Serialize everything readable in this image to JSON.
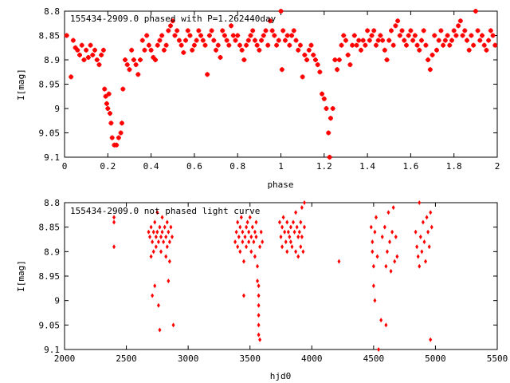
{
  "chart_data": [
    {
      "type": "scatter",
      "title": "155434-2909.0 phased with P=1.262440day",
      "xlabel": "phase",
      "ylabel": "I[mag]",
      "xlim": [
        0,
        2
      ],
      "ylim": [
        8.8,
        9.1
      ],
      "y_inverted": true,
      "xticks": [
        "0",
        "0.2",
        "0.4",
        "0.6",
        "0.8",
        "1",
        "1.2",
        "1.4",
        "1.6",
        "1.8",
        "2"
      ],
      "yticks": [
        "8.8",
        "8.85",
        "8.9",
        "8.95",
        "9",
        "9.05",
        "9.1"
      ],
      "marker_color": "#ff0000",
      "grid": false,
      "points": [
        [
          0.01,
          8.85
        ],
        [
          0.03,
          8.935
        ],
        [
          0.04,
          8.86
        ],
        [
          0.05,
          8.875
        ],
        [
          0.06,
          8.88
        ],
        [
          0.07,
          8.89
        ],
        [
          0.08,
          8.87
        ],
        [
          0.09,
          8.9
        ],
        [
          0.1,
          8.88
        ],
        [
          0.11,
          8.895
        ],
        [
          0.12,
          8.87
        ],
        [
          0.13,
          8.89
        ],
        [
          0.14,
          8.88
        ],
        [
          0.15,
          8.9
        ],
        [
          0.16,
          8.91
        ],
        [
          0.17,
          8.89
        ],
        [
          0.18,
          8.88
        ],
        [
          0.185,
          8.96
        ],
        [
          0.19,
          8.975
        ],
        [
          0.195,
          8.99
        ],
        [
          0.2,
          9.0
        ],
        [
          0.205,
          8.97
        ],
        [
          0.21,
          9.01
        ],
        [
          0.215,
          9.03
        ],
        [
          0.22,
          9.06
        ],
        [
          0.23,
          9.075
        ],
        [
          0.24,
          9.075
        ],
        [
          0.25,
          9.06
        ],
        [
          0.26,
          9.05
        ],
        [
          0.265,
          9.03
        ],
        [
          0.27,
          8.96
        ],
        [
          0.28,
          8.9
        ],
        [
          0.29,
          8.91
        ],
        [
          0.3,
          8.92
        ],
        [
          0.31,
          8.88
        ],
        [
          0.32,
          8.9
        ],
        [
          0.33,
          8.91
        ],
        [
          0.34,
          8.93
        ],
        [
          0.35,
          8.9
        ],
        [
          0.36,
          8.86
        ],
        [
          0.37,
          8.88
        ],
        [
          0.38,
          8.85
        ],
        [
          0.39,
          8.87
        ],
        [
          0.4,
          8.88
        ],
        [
          0.41,
          8.895
        ],
        [
          0.42,
          8.9
        ],
        [
          0.43,
          8.87
        ],
        [
          0.44,
          8.86
        ],
        [
          0.45,
          8.85
        ],
        [
          0.46,
          8.88
        ],
        [
          0.47,
          8.87
        ],
        [
          0.48,
          8.84
        ],
        [
          0.49,
          8.83
        ],
        [
          0.5,
          8.82
        ],
        [
          0.51,
          8.85
        ],
        [
          0.52,
          8.84
        ],
        [
          0.53,
          8.86
        ],
        [
          0.54,
          8.87
        ],
        [
          0.55,
          8.885
        ],
        [
          0.56,
          8.86
        ],
        [
          0.57,
          8.84
        ],
        [
          0.58,
          8.85
        ],
        [
          0.59,
          8.88
        ],
        [
          0.6,
          8.87
        ],
        [
          0.61,
          8.86
        ],
        [
          0.62,
          8.84
        ],
        [
          0.63,
          8.85
        ],
        [
          0.64,
          8.86
        ],
        [
          0.65,
          8.87
        ],
        [
          0.66,
          8.93
        ],
        [
          0.67,
          8.85
        ],
        [
          0.68,
          8.84
        ],
        [
          0.69,
          8.86
        ],
        [
          0.7,
          8.88
        ],
        [
          0.71,
          8.87
        ],
        [
          0.72,
          8.895
        ],
        [
          0.73,
          8.84
        ],
        [
          0.74,
          8.85
        ],
        [
          0.75,
          8.86
        ],
        [
          0.76,
          8.87
        ],
        [
          0.77,
          8.83
        ],
        [
          0.78,
          8.85
        ],
        [
          0.79,
          8.86
        ],
        [
          0.8,
          8.85
        ],
        [
          0.81,
          8.87
        ],
        [
          0.82,
          8.88
        ],
        [
          0.83,
          8.9
        ],
        [
          0.84,
          8.87
        ],
        [
          0.85,
          8.86
        ],
        [
          0.86,
          8.85
        ],
        [
          0.87,
          8.84
        ],
        [
          0.88,
          8.86
        ],
        [
          0.89,
          8.87
        ],
        [
          0.9,
          8.88
        ],
        [
          0.91,
          8.86
        ],
        [
          0.92,
          8.85
        ],
        [
          0.93,
          8.84
        ],
        [
          0.94,
          8.87
        ],
        [
          0.95,
          8.82
        ],
        [
          0.96,
          8.84
        ],
        [
          0.97,
          8.85
        ],
        [
          0.98,
          8.87
        ],
        [
          0.99,
          8.86
        ],
        [
          1.0,
          8.8
        ],
        [
          1.005,
          8.92
        ],
        [
          1.01,
          8.84
        ],
        [
          1.02,
          8.86
        ],
        [
          1.03,
          8.85
        ],
        [
          1.04,
          8.87
        ],
        [
          1.05,
          8.85
        ],
        [
          1.06,
          8.84
        ],
        [
          1.07,
          8.86
        ],
        [
          1.08,
          8.88
        ],
        [
          1.09,
          8.87
        ],
        [
          1.1,
          8.935
        ],
        [
          1.11,
          8.89
        ],
        [
          1.12,
          8.9
        ],
        [
          1.13,
          8.88
        ],
        [
          1.14,
          8.87
        ],
        [
          1.15,
          8.89
        ],
        [
          1.16,
          8.9
        ],
        [
          1.17,
          8.91
        ],
        [
          1.18,
          8.925
        ],
        [
          1.19,
          8.97
        ],
        [
          1.2,
          8.98
        ],
        [
          1.21,
          9.0
        ],
        [
          1.22,
          9.05
        ],
        [
          1.225,
          9.1
        ],
        [
          1.23,
          9.02
        ],
        [
          1.24,
          9.0
        ],
        [
          1.25,
          8.9
        ],
        [
          1.26,
          8.92
        ],
        [
          1.27,
          8.9
        ],
        [
          1.28,
          8.87
        ],
        [
          1.29,
          8.85
        ],
        [
          1.3,
          8.86
        ],
        [
          1.31,
          8.89
        ],
        [
          1.32,
          8.91
        ],
        [
          1.33,
          8.87
        ],
        [
          1.34,
          8.85
        ],
        [
          1.35,
          8.87
        ],
        [
          1.36,
          8.86
        ],
        [
          1.37,
          8.88
        ],
        [
          1.38,
          8.86
        ],
        [
          1.39,
          8.87
        ],
        [
          1.4,
          8.84
        ],
        [
          1.41,
          8.86
        ],
        [
          1.42,
          8.85
        ],
        [
          1.43,
          8.84
        ],
        [
          1.44,
          8.87
        ],
        [
          1.45,
          8.86
        ],
        [
          1.46,
          8.85
        ],
        [
          1.47,
          8.86
        ],
        [
          1.48,
          8.88
        ],
        [
          1.49,
          8.9
        ],
        [
          1.5,
          8.86
        ],
        [
          1.51,
          8.84
        ],
        [
          1.52,
          8.87
        ],
        [
          1.53,
          8.83
        ],
        [
          1.54,
          8.82
        ],
        [
          1.55,
          8.85
        ],
        [
          1.56,
          8.84
        ],
        [
          1.57,
          8.86
        ],
        [
          1.58,
          8.87
        ],
        [
          1.59,
          8.85
        ],
        [
          1.6,
          8.84
        ],
        [
          1.61,
          8.86
        ],
        [
          1.62,
          8.85
        ],
        [
          1.63,
          8.87
        ],
        [
          1.64,
          8.88
        ],
        [
          1.65,
          8.86
        ],
        [
          1.66,
          8.84
        ],
        [
          1.67,
          8.87
        ],
        [
          1.68,
          8.9
        ],
        [
          1.69,
          8.92
        ],
        [
          1.7,
          8.89
        ],
        [
          1.71,
          8.85
        ],
        [
          1.72,
          8.88
        ],
        [
          1.73,
          8.86
        ],
        [
          1.74,
          8.84
        ],
        [
          1.75,
          8.87
        ],
        [
          1.76,
          8.86
        ],
        [
          1.77,
          8.85
        ],
        [
          1.78,
          8.87
        ],
        [
          1.79,
          8.86
        ],
        [
          1.8,
          8.84
        ],
        [
          1.81,
          8.85
        ],
        [
          1.82,
          8.83
        ],
        [
          1.83,
          8.82
        ],
        [
          1.84,
          8.85
        ],
        [
          1.85,
          8.84
        ],
        [
          1.86,
          8.86
        ],
        [
          1.87,
          8.88
        ],
        [
          1.88,
          8.85
        ],
        [
          1.89,
          8.87
        ],
        [
          1.9,
          8.8
        ],
        [
          1.91,
          8.84
        ],
        [
          1.92,
          8.86
        ],
        [
          1.93,
          8.85
        ],
        [
          1.94,
          8.87
        ],
        [
          1.95,
          8.88
        ],
        [
          1.96,
          8.86
        ],
        [
          1.97,
          8.84
        ],
        [
          1.98,
          8.85
        ],
        [
          1.99,
          8.87
        ]
      ]
    },
    {
      "type": "scatter",
      "title": "155434-2909.0 not phased light curve",
      "xlabel": "hjd0",
      "ylabel": "I[mag]",
      "xlim": [
        2000,
        5500
      ],
      "ylim": [
        8.8,
        9.1
      ],
      "y_inverted": true,
      "xticks": [
        "2000",
        "2500",
        "3000",
        "3500",
        "4000",
        "4500",
        "5000",
        "5500"
      ],
      "yticks": [
        "8.8",
        "8.85",
        "8.9",
        "8.95",
        "9",
        "9.05",
        "9.1"
      ],
      "marker_color": "#ff0000",
      "grid": false,
      "points": [
        [
          2400,
          8.83
        ],
        [
          2400,
          8.84
        ],
        [
          2400,
          8.89
        ],
        [
          2680,
          8.86
        ],
        [
          2690,
          8.87
        ],
        [
          2700,
          8.85
        ],
        [
          2700,
          8.91
        ],
        [
          2710,
          8.88
        ],
        [
          2710,
          8.99
        ],
        [
          2720,
          8.86
        ],
        [
          2720,
          8.9
        ],
        [
          2730,
          8.84
        ],
        [
          2730,
          8.97
        ],
        [
          2740,
          8.87
        ],
        [
          2740,
          8.89
        ],
        [
          2750,
          8.82
        ],
        [
          2750,
          8.86
        ],
        [
          2760,
          8.88
        ],
        [
          2760,
          9.01
        ],
        [
          2770,
          8.85
        ],
        [
          2770,
          9.06
        ],
        [
          2780,
          8.87
        ],
        [
          2780,
          8.9
        ],
        [
          2790,
          8.83
        ],
        [
          2790,
          8.86
        ],
        [
          2800,
          8.88
        ],
        [
          2810,
          8.85
        ],
        [
          2820,
          8.87
        ],
        [
          2820,
          8.91
        ],
        [
          2830,
          8.84
        ],
        [
          2830,
          8.89
        ],
        [
          2840,
          8.86
        ],
        [
          2840,
          8.96
        ],
        [
          2850,
          8.88
        ],
        [
          2850,
          8.92
        ],
        [
          2860,
          8.85
        ],
        [
          2870,
          8.87
        ],
        [
          2880,
          9.05
        ],
        [
          3380,
          8.88
        ],
        [
          3390,
          8.86
        ],
        [
          3400,
          8.84
        ],
        [
          3400,
          8.89
        ],
        [
          3410,
          8.87
        ],
        [
          3420,
          8.85
        ],
        [
          3420,
          8.9
        ],
        [
          3430,
          8.83
        ],
        [
          3440,
          8.86
        ],
        [
          3440,
          8.88
        ],
        [
          3450,
          8.92
        ],
        [
          3450,
          8.99
        ],
        [
          3460,
          8.87
        ],
        [
          3470,
          8.85
        ],
        [
          3470,
          8.89
        ],
        [
          3480,
          8.84
        ],
        [
          3490,
          8.86
        ],
        [
          3490,
          8.88
        ],
        [
          3500,
          8.83
        ],
        [
          3510,
          8.87
        ],
        [
          3510,
          8.9
        ],
        [
          3520,
          8.85
        ],
        [
          3530,
          8.88
        ],
        [
          3540,
          8.86
        ],
        [
          3540,
          8.91
        ],
        [
          3550,
          8.84
        ],
        [
          3550,
          8.87
        ],
        [
          3560,
          8.93
        ],
        [
          3560,
          8.96
        ],
        [
          3570,
          8.97
        ],
        [
          3570,
          8.99
        ],
        [
          3570,
          9.01
        ],
        [
          3570,
          9.03
        ],
        [
          3570,
          9.05
        ],
        [
          3570,
          9.07
        ],
        [
          3580,
          8.89
        ],
        [
          3580,
          9.08
        ],
        [
          3590,
          8.86
        ],
        [
          3600,
          8.88
        ],
        [
          3740,
          8.84
        ],
        [
          3750,
          8.87
        ],
        [
          3760,
          8.85
        ],
        [
          3760,
          8.89
        ],
        [
          3770,
          8.83
        ],
        [
          3780,
          8.86
        ],
        [
          3790,
          8.88
        ],
        [
          3800,
          8.84
        ],
        [
          3800,
          8.9
        ],
        [
          3810,
          8.86
        ],
        [
          3820,
          8.87
        ],
        [
          3830,
          8.85
        ],
        [
          3830,
          8.88
        ],
        [
          3840,
          8.89
        ],
        [
          3850,
          8.84
        ],
        [
          3860,
          8.86
        ],
        [
          3870,
          8.82
        ],
        [
          3870,
          8.9
        ],
        [
          3880,
          8.85
        ],
        [
          3890,
          8.87
        ],
        [
          3890,
          8.91
        ],
        [
          3900,
          8.86
        ],
        [
          3910,
          8.84
        ],
        [
          3910,
          8.89
        ],
        [
          3920,
          8.81
        ],
        [
          3920,
          8.87
        ],
        [
          3930,
          8.9
        ],
        [
          3940,
          8.85
        ],
        [
          3940,
          8.8
        ],
        [
          4220,
          8.92
        ],
        [
          4480,
          8.85
        ],
        [
          4490,
          8.88
        ],
        [
          4490,
          8.9
        ],
        [
          4500,
          8.93
        ],
        [
          4500,
          8.97
        ],
        [
          4510,
          8.86
        ],
        [
          4510,
          9.0
        ],
        [
          4520,
          8.83
        ],
        [
          4530,
          8.91
        ],
        [
          4540,
          9.1
        ],
        [
          4560,
          9.04
        ],
        [
          4570,
          8.87
        ],
        [
          4590,
          8.85
        ],
        [
          4600,
          8.93
        ],
        [
          4600,
          9.05
        ],
        [
          4610,
          8.9
        ],
        [
          4620,
          8.82
        ],
        [
          4630,
          8.88
        ],
        [
          4640,
          8.94
        ],
        [
          4650,
          8.86
        ],
        [
          4660,
          8.81
        ],
        [
          4670,
          8.92
        ],
        [
          4680,
          8.87
        ],
        [
          4690,
          8.91
        ],
        [
          4840,
          8.86
        ],
        [
          4850,
          8.89
        ],
        [
          4860,
          8.91
        ],
        [
          4870,
          8.93
        ],
        [
          4870,
          8.8
        ],
        [
          4880,
          8.87
        ],
        [
          4890,
          8.9
        ],
        [
          4900,
          8.84
        ],
        [
          4910,
          8.88
        ],
        [
          4920,
          8.92
        ],
        [
          4930,
          8.83
        ],
        [
          4940,
          8.86
        ],
        [
          4950,
          8.89
        ],
        [
          4960,
          8.82
        ],
        [
          4960,
          9.08
        ],
        [
          4970,
          8.85
        ]
      ]
    }
  ]
}
